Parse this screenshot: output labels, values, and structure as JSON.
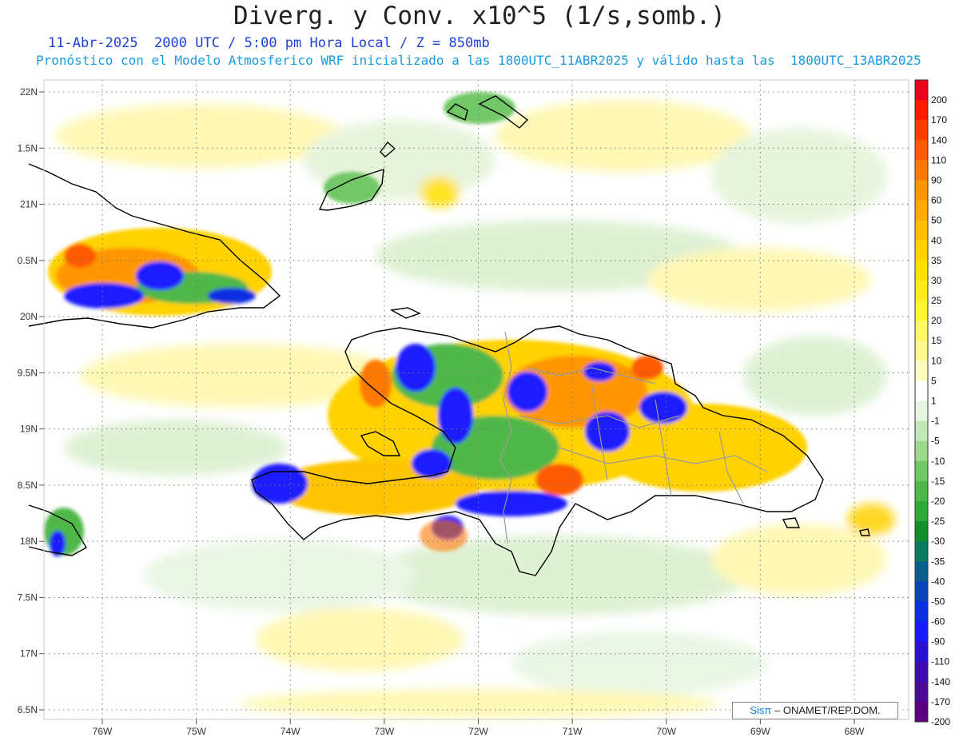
{
  "title": "Diverg. y Conv. x10^5 (1/s,somb.)",
  "subtitle_time": "11-Abr-2025  2000 UTC / 5:00 pm Hora Local / Z = 850mb",
  "subtitle_model": "Pronóstico con el Modelo Atmosferico WRF inicializado a las 1800UTC_11ABR2025 y válido hasta las  1800UTC_13ABR2025",
  "credit": {
    "logo": "Sisπ",
    "text": "– ONAMET/REP.DOM."
  },
  "map": {
    "lat_range": [
      16.5,
      22
    ],
    "lon_range": [
      -76.6,
      -67.6
    ],
    "lat_ticks": [
      {
        "value": 22,
        "label": "22N"
      },
      {
        "value": 21.5,
        "label": "1.5N"
      },
      {
        "value": 21,
        "label": "21N"
      },
      {
        "value": 20.5,
        "label": "0.5N"
      },
      {
        "value": 20,
        "label": "20N"
      },
      {
        "value": 19.5,
        "label": "9.5N"
      },
      {
        "value": 19,
        "label": "19N"
      },
      {
        "value": 18.5,
        "label": "8.5N"
      },
      {
        "value": 18,
        "label": "18N"
      },
      {
        "value": 17.5,
        "label": "7.5N"
      },
      {
        "value": 17,
        "label": "17N"
      },
      {
        "value": 16.5,
        "label": "6.5N"
      }
    ],
    "lon_ticks": [
      {
        "value": -76,
        "label": "76W"
      },
      {
        "value": -75,
        "label": "75W"
      },
      {
        "value": -74,
        "label": "74W"
      },
      {
        "value": -73,
        "label": "73W"
      },
      {
        "value": -72,
        "label": "72W"
      },
      {
        "value": -71,
        "label": "71W"
      },
      {
        "value": -70,
        "label": "70W"
      },
      {
        "value": -69,
        "label": "69W"
      },
      {
        "value": -68,
        "label": "68W"
      }
    ],
    "grid": true,
    "regions": [
      "Cuba",
      "Hispaniola",
      "Jamaica",
      "Bahamas"
    ]
  },
  "colorbar": {
    "levels": [
      {
        "label": "200",
        "color": "#e8001c"
      },
      {
        "label": "170",
        "color": "#ff1a00"
      },
      {
        "label": "140",
        "color": "#ff3d00"
      },
      {
        "label": "110",
        "color": "#ff5a00"
      },
      {
        "label": "90",
        "color": "#ff7800"
      },
      {
        "label": "60",
        "color": "#ff9600"
      },
      {
        "label": "50",
        "color": "#ffaa00"
      },
      {
        "label": "40",
        "color": "#ffbe00"
      },
      {
        "label": "35",
        "color": "#ffd200"
      },
      {
        "label": "30",
        "color": "#ffe000"
      },
      {
        "label": "25",
        "color": "#ffec1a"
      },
      {
        "label": "20",
        "color": "#fff533"
      },
      {
        "label": "15",
        "color": "#fff866"
      },
      {
        "label": "10",
        "color": "#fffa8f"
      },
      {
        "label": "5",
        "color": "#fffcc0"
      },
      {
        "label": "1",
        "color": "#ffffff"
      },
      {
        "label": "-1",
        "color": "#e6f5e0"
      },
      {
        "label": "-5",
        "color": "#c2e8b8"
      },
      {
        "label": "-10",
        "color": "#9cd98c"
      },
      {
        "label": "-15",
        "color": "#72c766"
      },
      {
        "label": "-20",
        "color": "#4fb84a"
      },
      {
        "label": "-25",
        "color": "#2ea836"
      },
      {
        "label": "-30",
        "color": "#138e2b"
      },
      {
        "label": "-35",
        "color": "#0c7a5e"
      },
      {
        "label": "-40",
        "color": "#0a5e8c"
      },
      {
        "label": "-50",
        "color": "#0a44b8"
      },
      {
        "label": "-60",
        "color": "#0a2ee0"
      },
      {
        "label": "-90",
        "color": "#1a1aff"
      },
      {
        "label": "-110",
        "color": "#2a10d0"
      },
      {
        "label": "-140",
        "color": "#3a0cb0"
      },
      {
        "label": "-170",
        "color": "#4a0a96"
      },
      {
        "label": "-200",
        "color": "#5a0080"
      }
    ]
  }
}
